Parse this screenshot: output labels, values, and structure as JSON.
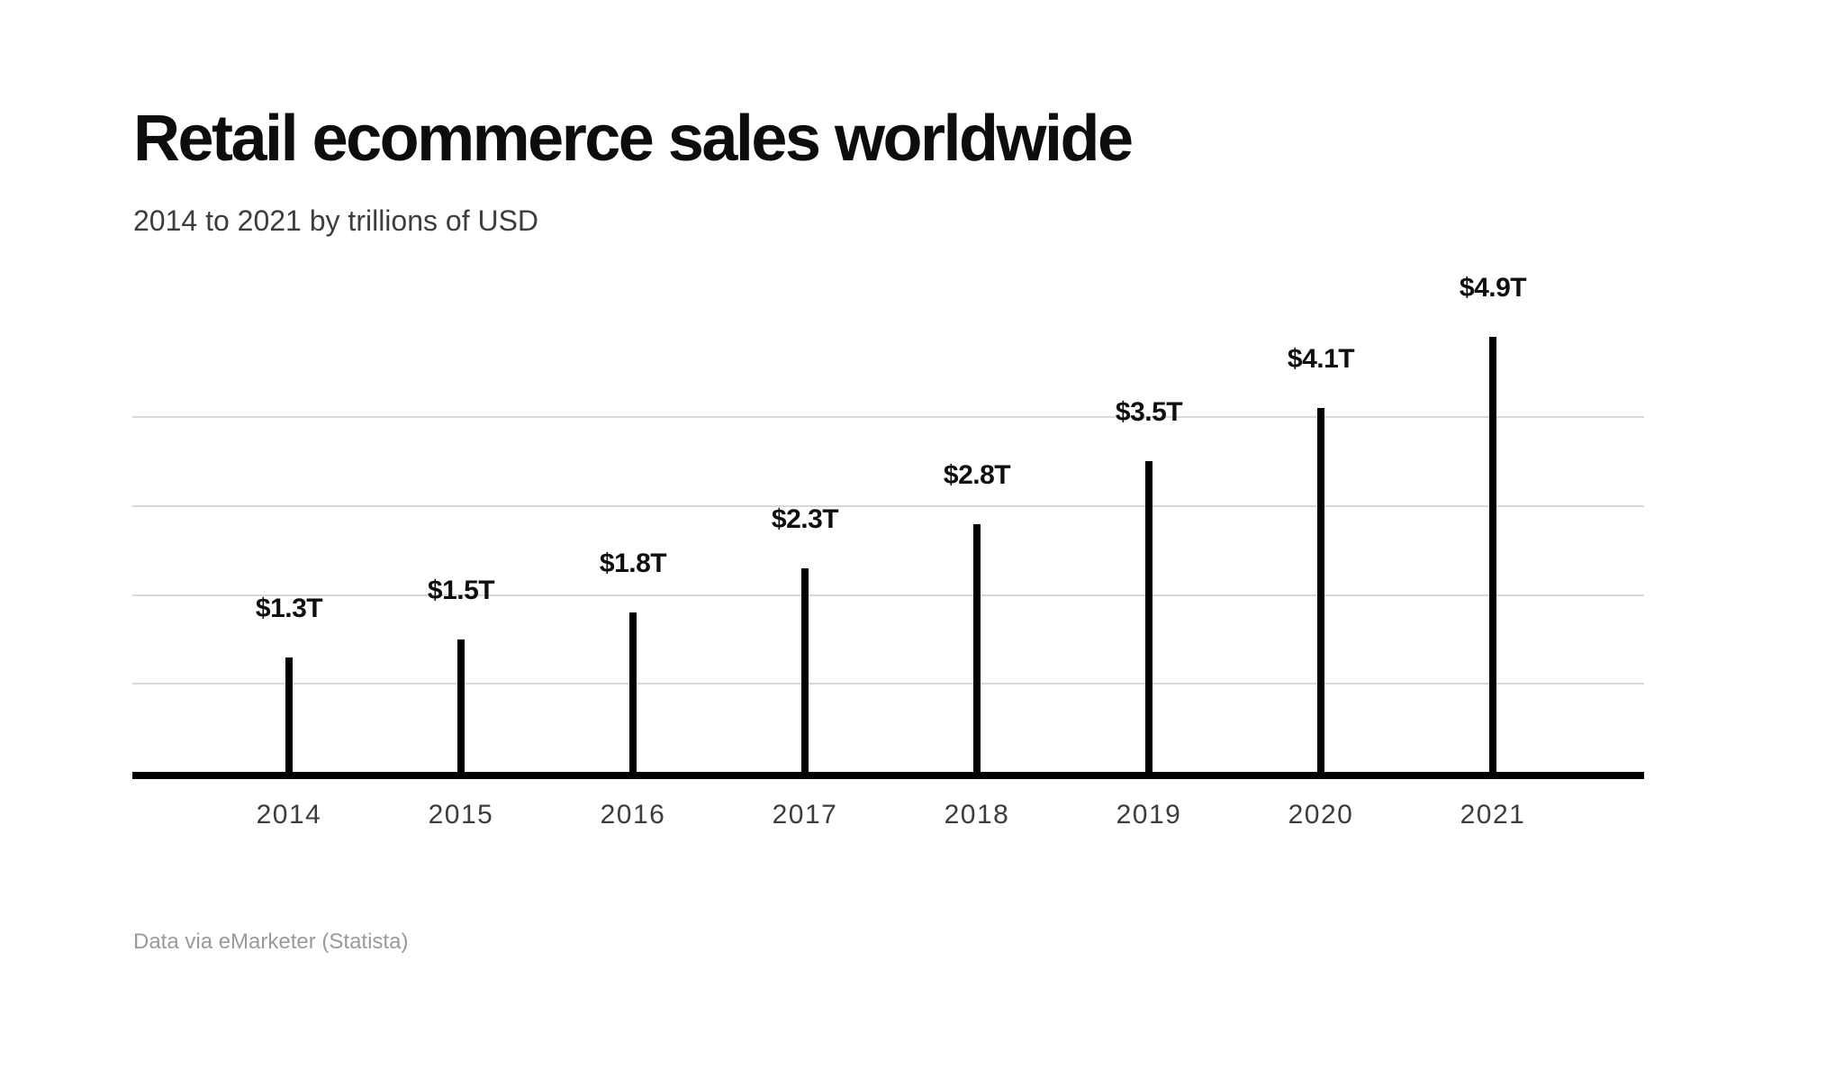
{
  "chart_data": {
    "type": "bar",
    "title": "Retail ecommerce sales worldwide",
    "subtitle": "2014 to 2021 by trillions of USD",
    "source_note": "Data via eMarketer (Statista)",
    "categories": [
      "2014",
      "2015",
      "2016",
      "2017",
      "2018",
      "2019",
      "2020",
      "2021"
    ],
    "values": [
      1.3,
      1.5,
      1.8,
      2.3,
      2.8,
      3.5,
      4.1,
      4.9
    ],
    "value_labels": [
      "$1.3T",
      "$1.5T",
      "$1.8T",
      "$2.3T",
      "$2.8T",
      "$3.5T",
      "$4.1T",
      "$4.9T"
    ],
    "unit": "trillions of USD",
    "xlabel": "",
    "ylabel": "",
    "ylim": [
      0,
      5
    ],
    "y_gridline_values": [
      1,
      2,
      3,
      4
    ],
    "y_axis_tick_labels_shown": false,
    "grid": "horizontal",
    "legend": "none",
    "annotations": "value label above each bar",
    "colors": {
      "bar": "#000000",
      "gridline": "#d9d9d9",
      "axis_line": "#000000",
      "value_label": "#0f0f0f",
      "tick_label": "#3c3c3c",
      "title": "#0d0d0d",
      "subtitle": "#3d3d3d",
      "source": "#9a9a9a",
      "background": "#ffffff"
    }
  }
}
